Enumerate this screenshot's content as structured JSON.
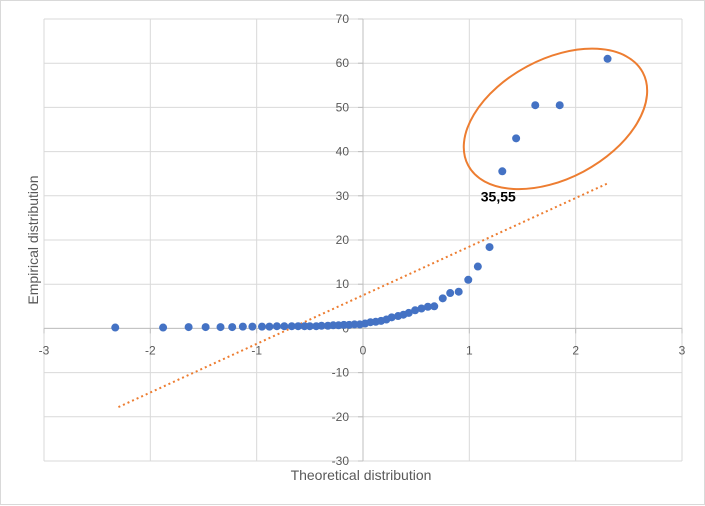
{
  "chart_data": {
    "type": "scatter",
    "title": "",
    "xlabel": "Theoretical distribution",
    "ylabel": "Empirical distribution",
    "xlim": [
      -3,
      3
    ],
    "ylim": [
      -30,
      70
    ],
    "x_ticks": [
      "-3",
      "-2",
      "-1",
      "0",
      "1",
      "2",
      "3"
    ],
    "y_ticks": [
      "-30",
      "-20",
      "-10",
      "0",
      "10",
      "20",
      "30",
      "40",
      "50",
      "60",
      "70"
    ],
    "grid": true,
    "legend": "none",
    "colors": {
      "points": "#4472c4",
      "trendline": "#ed7d31",
      "highlight": "#ed7d31",
      "grid": "#d9d9d9",
      "axis": "#bfbfbf"
    },
    "series": [
      {
        "values_x": [
          -2.33,
          -1.88,
          -1.64,
          -1.48,
          -1.34,
          -1.23,
          -1.13,
          -1.04,
          -0.95,
          -0.88,
          -0.81,
          -0.74,
          -0.67,
          -0.61,
          -0.55,
          -0.5,
          -0.44,
          -0.39,
          -0.33,
          -0.28,
          -0.23,
          -0.18,
          -0.13,
          -0.08,
          -0.03,
          0.02,
          0.07,
          0.12,
          0.17,
          0.22,
          0.27,
          0.33,
          0.38,
          0.43,
          0.49,
          0.55,
          0.61,
          0.67,
          0.75,
          0.82,
          0.9,
          0.99,
          1.08,
          1.19,
          1.31,
          1.44,
          1.62,
          1.85,
          2.3
        ],
        "values_y": [
          0.2,
          0.2,
          0.3,
          0.3,
          0.3,
          0.3,
          0.4,
          0.4,
          0.4,
          0.4,
          0.5,
          0.5,
          0.5,
          0.5,
          0.5,
          0.5,
          0.5,
          0.6,
          0.6,
          0.7,
          0.7,
          0.8,
          0.8,
          0.9,
          0.9,
          1.1,
          1.4,
          1.5,
          1.7,
          2.0,
          2.5,
          2.8,
          3.1,
          3.5,
          4.1,
          4.5,
          4.9,
          5.0,
          6.8,
          8.0,
          8.3,
          11.0,
          14.0,
          18.4,
          35.55,
          43.0,
          50.5,
          50.5,
          61.0
        ]
      }
    ],
    "trendline": {
      "type": "linear",
      "style": "dotted",
      "x": [
        -2.3,
        2.3
      ],
      "y": [
        -17.8,
        32.8
      ]
    },
    "annotations": [
      {
        "text": "35,55",
        "x": 1.31,
        "y": 35.55
      }
    ],
    "highlight_ellipse": {
      "cx": 1.81,
      "cy": 47.4,
      "rx": 0.93,
      "ry": 13.5,
      "rotation_deg": -28
    }
  }
}
